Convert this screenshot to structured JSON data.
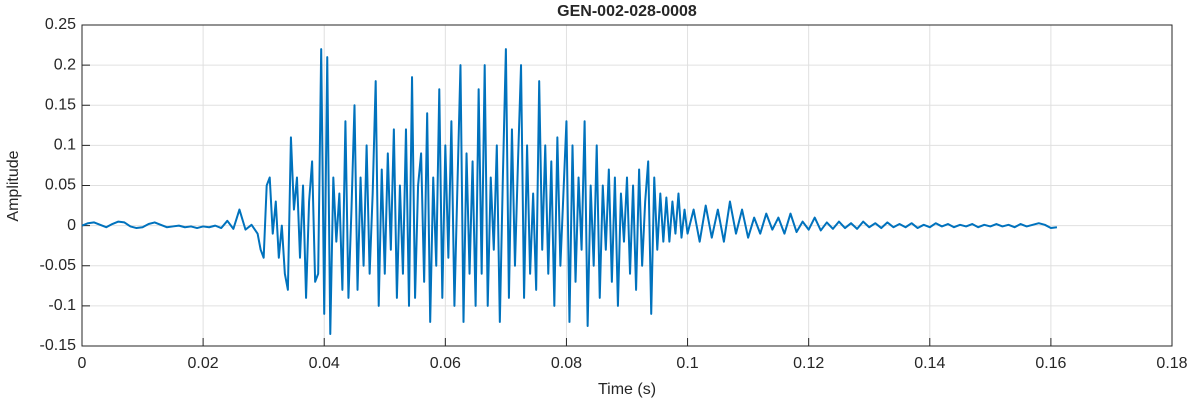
{
  "chart_data": {
    "type": "line",
    "title": "GEN-002-028-0008",
    "x_label": "Time (s)",
    "y_label": "Amplitude",
    "x": [
      0,
      0.001,
      0.002,
      0.003,
      0.004,
      0.005,
      0.006,
      0.007,
      0.008,
      0.009,
      0.01,
      0.011,
      0.012,
      0.013,
      0.014,
      0.015,
      0.016,
      0.017,
      0.018,
      0.019,
      0.02,
      0.021,
      0.022,
      0.023,
      0.024,
      0.025,
      0.026,
      0.027,
      0.028,
      0.029,
      0.0295,
      0.03,
      0.0305,
      0.031,
      0.0315,
      0.032,
      0.0325,
      0.033,
      0.0335,
      0.034,
      0.0345,
      0.035,
      0.0355,
      0.036,
      0.0365,
      0.037,
      0.0375,
      0.038,
      0.0385,
      0.039,
      0.0395,
      0.04,
      0.0405,
      0.041,
      0.0415,
      0.042,
      0.0425,
      0.043,
      0.0435,
      0.044,
      0.0445,
      0.045,
      0.0455,
      0.046,
      0.0465,
      0.047,
      0.0475,
      0.048,
      0.0485,
      0.049,
      0.0495,
      0.05,
      0.0505,
      0.051,
      0.0515,
      0.052,
      0.0525,
      0.053,
      0.0535,
      0.054,
      0.0545,
      0.055,
      0.0555,
      0.056,
      0.0565,
      0.057,
      0.0575,
      0.058,
      0.0585,
      0.059,
      0.0595,
      0.06,
      0.0605,
      0.061,
      0.0615,
      0.062,
      0.0625,
      0.063,
      0.0635,
      0.064,
      0.0645,
      0.065,
      0.0655,
      0.066,
      0.0665,
      0.067,
      0.0675,
      0.068,
      0.0685,
      0.069,
      0.0695,
      0.07,
      0.0705,
      0.071,
      0.0715,
      0.072,
      0.0725,
      0.073,
      0.0735,
      0.074,
      0.0745,
      0.075,
      0.0755,
      0.076,
      0.0765,
      0.077,
      0.0775,
      0.078,
      0.0785,
      0.079,
      0.0795,
      0.08,
      0.0805,
      0.081,
      0.0815,
      0.082,
      0.0825,
      0.083,
      0.0835,
      0.084,
      0.0845,
      0.085,
      0.0855,
      0.086,
      0.0865,
      0.087,
      0.0875,
      0.088,
      0.0885,
      0.089,
      0.0895,
      0.09,
      0.0905,
      0.091,
      0.0915,
      0.092,
      0.0925,
      0.093,
      0.0935,
      0.094,
      0.0945,
      0.095,
      0.0955,
      0.096,
      0.0965,
      0.097,
      0.0975,
      0.098,
      0.0985,
      0.099,
      0.0995,
      0.1,
      0.101,
      0.102,
      0.103,
      0.104,
      0.105,
      0.106,
      0.107,
      0.108,
      0.109,
      0.11,
      0.111,
      0.112,
      0.113,
      0.114,
      0.115,
      0.116,
      0.117,
      0.118,
      0.119,
      0.12,
      0.121,
      0.122,
      0.123,
      0.124,
      0.125,
      0.126,
      0.127,
      0.128,
      0.129,
      0.13,
      0.131,
      0.132,
      0.133,
      0.134,
      0.135,
      0.136,
      0.137,
      0.138,
      0.139,
      0.14,
      0.141,
      0.142,
      0.143,
      0.144,
      0.145,
      0.146,
      0.147,
      0.148,
      0.149,
      0.15,
      0.151,
      0.152,
      0.153,
      0.154,
      0.155,
      0.156,
      0.157,
      0.158,
      0.159,
      0.16,
      0.161
    ],
    "values": [
      0,
      0.003,
      0.004,
      0.001,
      -0.002,
      0.002,
      0.005,
      0.004,
      -0.001,
      -0.003,
      -0.002,
      0.002,
      0.004,
      0.001,
      -0.002,
      -0.001,
      0,
      -0.002,
      -0.001,
      -0.003,
      -0.001,
      -0.002,
      0,
      -0.003,
      0.006,
      -0.004,
      0.02,
      -0.005,
      0.001,
      -0.01,
      -0.03,
      -0.04,
      0.05,
      0.06,
      -0.01,
      0.03,
      -0.04,
      0,
      -0.06,
      -0.08,
      0.11,
      0.02,
      0.06,
      -0.04,
      0.05,
      -0.09,
      0.03,
      0.08,
      -0.07,
      -0.06,
      0.22,
      -0.11,
      0.21,
      -0.135,
      0.06,
      -0.02,
      0.04,
      -0.08,
      0.13,
      -0.09,
      0.02,
      0.15,
      -0.08,
      0.06,
      -0.05,
      0.1,
      -0.06,
      0.04,
      0.18,
      -0.1,
      0.07,
      -0.06,
      0.09,
      -0.03,
      0.12,
      -0.09,
      0.05,
      -0.06,
      0.12,
      -0.1,
      0.185,
      -0.09,
      0.05,
      0.09,
      -0.07,
      0.14,
      -0.12,
      0.06,
      -0.05,
      0.17,
      -0.09,
      0.1,
      -0.04,
      0.13,
      -0.1,
      0.05,
      0.2,
      -0.12,
      0.09,
      -0.06,
      0.08,
      -0.1,
      0.17,
      -0.06,
      0.2,
      -0.1,
      0.06,
      -0.03,
      0.1,
      -0.12,
      0.06,
      0.22,
      -0.09,
      0.12,
      -0.05,
      0.08,
      0.2,
      -0.09,
      0.1,
      -0.06,
      0.04,
      -0.08,
      0.18,
      -0.03,
      0.1,
      -0.06,
      0.08,
      -0.1,
      0.11,
      -0.05,
      0.04,
      0.13,
      -0.12,
      0.1,
      -0.07,
      0.06,
      -0.03,
      0.13,
      -0.125,
      0.05,
      -0.05,
      0.1,
      -0.09,
      0.05,
      -0.03,
      0.07,
      -0.07,
      0.06,
      -0.1,
      0.04,
      -0.02,
      0.06,
      -0.06,
      0.05,
      -0.08,
      0.07,
      -0.05,
      0.03,
      0.08,
      -0.11,
      0.06,
      -0.03,
      0.04,
      -0.02,
      0.035,
      -0.02,
      0.03,
      -0.01,
      0.04,
      -0.015,
      0.02,
      -0.01,
      0.02,
      -0.02,
      0.025,
      -0.015,
      0.02,
      -0.02,
      0.03,
      -0.01,
      0.02,
      -0.015,
      0.01,
      -0.01,
      0.015,
      -0.005,
      0.01,
      -0.01,
      0.015,
      -0.008,
      0.005,
      -0.005,
      0.01,
      -0.006,
      0.004,
      -0.004,
      0.005,
      -0.003,
      0.003,
      -0.004,
      0.005,
      -0.002,
      0.003,
      -0.003,
      0.004,
      -0.002,
      0.002,
      -0.002,
      0.003,
      -0.003,
      0.001,
      -0.002,
      0.003,
      -0.001,
      0.002,
      -0.002,
      0.001,
      -0.001,
      0.002,
      -0.002,
      0.001,
      -0.001,
      0.002,
      -0.001,
      0.001,
      -0.002,
      0.002,
      -0.001,
      0.001,
      0.003,
      0.001,
      -0.003,
      -0.002
    ],
    "color": "#0072bd",
    "xlim": [
      0,
      0.18
    ],
    "xticks": [
      0,
      0.02,
      0.04,
      0.06,
      0.08,
      0.1,
      0.12,
      0.14,
      0.16,
      0.18
    ],
    "ylim": [
      -0.15,
      0.25
    ],
    "yticks": [
      -0.15,
      -0.1,
      -0.05,
      0,
      0.05,
      0.1,
      0.15,
      0.2,
      0.25
    ],
    "grid": true
  }
}
